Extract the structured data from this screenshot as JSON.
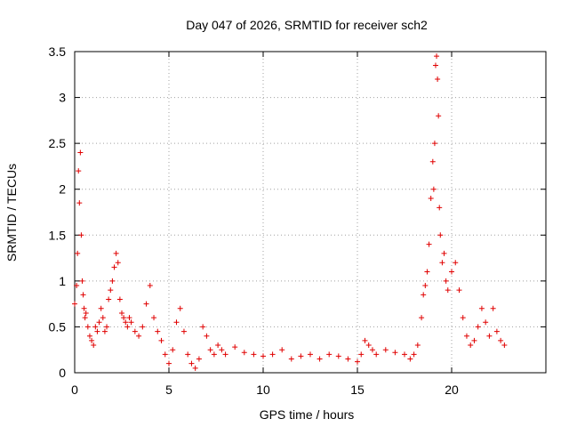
{
  "chart_data": {
    "type": "scatter",
    "title": "Day 047 of 2026, SRMTID for receiver sch2",
    "xlabel": "GPS time / hours",
    "ylabel": "SRMTID / TECUs",
    "xlim": [
      0,
      25
    ],
    "ylim": [
      0,
      3.5
    ],
    "x_ticks": [
      0,
      5,
      10,
      15,
      20
    ],
    "y_ticks": [
      0,
      0.5,
      1,
      1.5,
      2,
      2.5,
      3,
      3.5
    ],
    "x_tick_labels": [
      "0",
      "5",
      "10",
      "15",
      "20"
    ],
    "y_tick_labels": [
      "0",
      "0.5",
      "1",
      "1.5",
      "2",
      "2.5",
      "3",
      "3.5"
    ],
    "grid": true,
    "marker": "plus",
    "color": "#e00000",
    "series": [
      {
        "name": "sch2",
        "x": [
          0.0,
          0.1,
          0.15,
          0.2,
          0.25,
          0.3,
          0.35,
          0.4,
          0.45,
          0.5,
          0.55,
          0.6,
          0.7,
          0.8,
          0.9,
          1.0,
          1.1,
          1.2,
          1.3,
          1.4,
          1.5,
          1.6,
          1.7,
          1.8,
          1.9,
          2.0,
          2.1,
          2.2,
          2.3,
          2.4,
          2.5,
          2.6,
          2.7,
          2.8,
          2.9,
          3.0,
          3.2,
          3.4,
          3.6,
          3.8,
          4.0,
          4.2,
          4.4,
          4.6,
          4.8,
          5.0,
          5.2,
          5.4,
          5.6,
          5.8,
          6.0,
          6.2,
          6.4,
          6.6,
          6.8,
          7.0,
          7.2,
          7.4,
          7.6,
          7.8,
          8.0,
          8.5,
          9.0,
          9.5,
          10.0,
          10.5,
          11.0,
          11.5,
          12.0,
          12.5,
          13.0,
          13.5,
          14.0,
          14.5,
          15.0,
          15.2,
          15.4,
          15.6,
          15.8,
          16.0,
          16.5,
          17.0,
          17.5,
          17.8,
          18.0,
          18.2,
          18.4,
          18.5,
          18.6,
          18.7,
          18.8,
          18.9,
          19.0,
          19.05,
          19.1,
          19.15,
          19.2,
          19.25,
          19.3,
          19.35,
          19.4,
          19.5,
          19.6,
          19.7,
          19.8,
          20.0,
          20.2,
          20.4,
          20.6,
          20.8,
          21.0,
          21.2,
          21.4,
          21.6,
          21.8,
          22.0,
          22.2,
          22.4,
          22.6,
          22.8
        ],
        "y": [
          0.75,
          0.95,
          1.3,
          2.2,
          1.85,
          2.4,
          1.5,
          1.0,
          0.85,
          0.7,
          0.6,
          0.65,
          0.5,
          0.4,
          0.35,
          0.3,
          0.5,
          0.45,
          0.55,
          0.7,
          0.6,
          0.45,
          0.5,
          0.8,
          0.9,
          1.0,
          1.15,
          1.3,
          1.2,
          0.8,
          0.65,
          0.6,
          0.55,
          0.5,
          0.6,
          0.55,
          0.45,
          0.4,
          0.5,
          0.75,
          0.95,
          0.6,
          0.45,
          0.35,
          0.2,
          0.1,
          0.25,
          0.55,
          0.7,
          0.45,
          0.2,
          0.1,
          0.05,
          0.15,
          0.5,
          0.4,
          0.25,
          0.2,
          0.3,
          0.25,
          0.2,
          0.28,
          0.22,
          0.2,
          0.18,
          0.2,
          0.25,
          0.15,
          0.18,
          0.2,
          0.15,
          0.2,
          0.18,
          0.15,
          0.12,
          0.2,
          0.35,
          0.3,
          0.25,
          0.2,
          0.25,
          0.22,
          0.2,
          0.15,
          0.2,
          0.3,
          0.6,
          0.85,
          0.95,
          1.1,
          1.4,
          1.9,
          2.3,
          2.0,
          2.5,
          3.35,
          3.45,
          3.2,
          2.8,
          1.8,
          1.5,
          1.2,
          1.3,
          1.0,
          0.9,
          1.1,
          1.2,
          0.9,
          0.6,
          0.4,
          0.3,
          0.35,
          0.5,
          0.7,
          0.55,
          0.4,
          0.7,
          0.45,
          0.35,
          0.3
        ]
      }
    ]
  }
}
